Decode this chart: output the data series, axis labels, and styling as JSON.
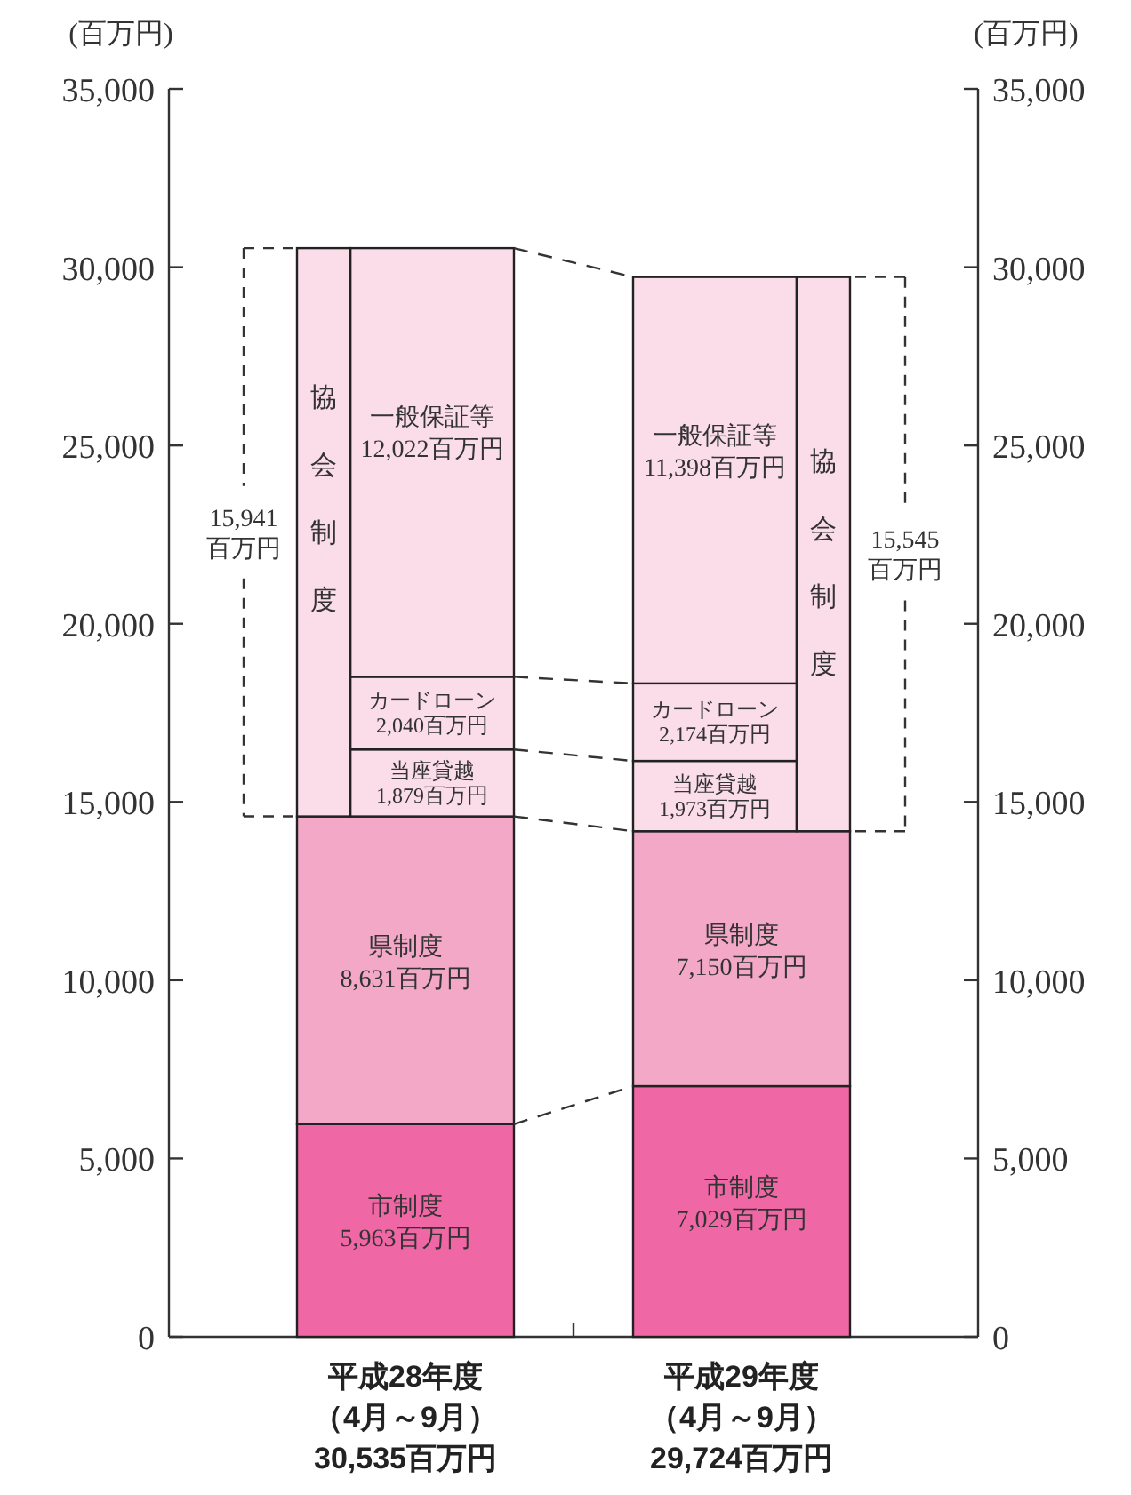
{
  "chart_data": {
    "type": "bar",
    "stacked": true,
    "categories": [
      "平成28年度（4月～9月）30,535百万円",
      "平成29年度（4月～9月）29,724百万円"
    ],
    "ylabel": "(百万円)",
    "y2label": "(百万円)",
    "ylim": [
      0,
      35000
    ],
    "yticks": [
      0,
      {
        "value": 5000,
        "label": "5,000"
      },
      {
        "value": 10000,
        "label": "10,000"
      },
      {
        "value": 15000,
        "label": "15,000"
      },
      {
        "value": 20000,
        "label": "20,000"
      },
      {
        "value": 25000,
        "label": "25,000"
      },
      {
        "value": 30000,
        "label": "30,000"
      },
      {
        "value": 35000,
        "label": "35,000"
      }
    ],
    "y2lim": [
      0,
      35000
    ],
    "y2ticks": [
      0,
      {
        "value": 5000,
        "label": "5,000"
      },
      {
        "value": 10000,
        "label": "10,000"
      },
      {
        "value": 15000,
        "label": "15,000"
      },
      {
        "value": 20000,
        "label": "20,000"
      },
      {
        "value": 25000,
        "label": "25,000"
      },
      {
        "value": 30000,
        "label": "30,000"
      },
      {
        "value": 35000,
        "label": "35,000"
      }
    ],
    "series": [
      {
        "name": "市制度",
        "color": "#f067a6",
        "values": [
          5963,
          7029
        ],
        "value_labels": [
          "5,963百万円",
          "7,029百万円"
        ]
      },
      {
        "name": "県制度",
        "color": "#f3a8c8",
        "values": [
          8631,
          7150
        ],
        "value_labels": [
          "8,631百万円",
          "7,150百万円"
        ]
      },
      {
        "name": "当座貸越",
        "color": "#fbdde9",
        "values": [
          1879,
          1973
        ],
        "value_labels": [
          "1,879百万円",
          "1,973百万円"
        ]
      },
      {
        "name": "カードローン",
        "color": "#fbdde9",
        "values": [
          2040,
          2174
        ],
        "value_labels": [
          "2,040百万円",
          "2,174百万円"
        ]
      },
      {
        "name": "一般保証等",
        "color": "#fbdde9",
        "values": [
          12022,
          11398
        ],
        "value_labels": [
          "12,022百万円",
          "11,398百万円"
        ]
      }
    ],
    "annotations": [
      "協会制度",
      "15,941\n百万円",
      "協会制度",
      "15,545\n百万円"
    ]
  }
}
